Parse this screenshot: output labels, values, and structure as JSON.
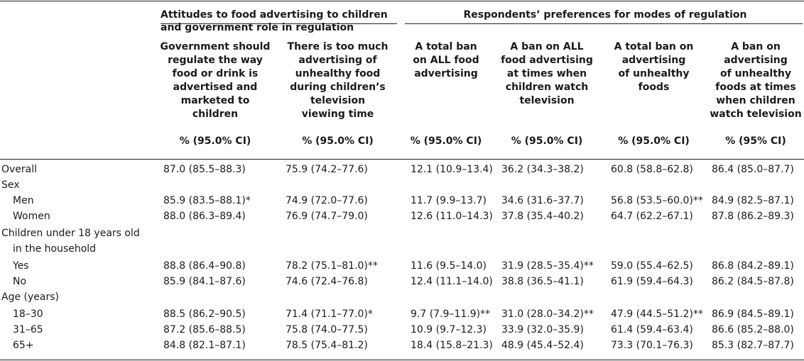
{
  "table": {
    "group_headers": [
      "Attitudes to food advertising to children and government role in regulation",
      "Respondents’ preferences for modes of regulation"
    ],
    "columns": [
      {
        "label": "Government should\nregulate the way\nfood or drink is\nadvertised and\nmarketed to\nchildren",
        "unit": "% (95.0% CI)"
      },
      {
        "label": "There is too much\nadvertising of\nunhealthy food\nduring children’s\ntelevision\nviewing time",
        "unit": "% (95.0% CI)"
      },
      {
        "label": "A total ban\non ALL food\nadvertising",
        "unit": "% (95.0% CI)"
      },
      {
        "label": "A ban on ALL\nfood advertising\nat times when\nchildren watch\ntelevision",
        "unit": "% (95.0% CI)"
      },
      {
        "label": "A total ban on\nadvertising\nof unhealthy\nfoods",
        "unit": "% (95.0% CI)"
      },
      {
        "label": "A ban on\nadvertising\nof unhealthy\nfoods at times\nwhen children\nwatch television",
        "unit": "% (95% CI)"
      }
    ],
    "rows": [
      {
        "label": "Overall",
        "values": [
          "87.0 (85.5–88.3)",
          "75.9 (74.2–77.6)",
          "12.1 (10.9–13.4)",
          "36.2 (34.3–38.2)",
          "60.8 (58.8–62.8)",
          "86.4 (85.0–87.7)"
        ]
      },
      {
        "label": "Sex",
        "values": []
      },
      {
        "label": "Men",
        "values": [
          "85.9 (83.5–88.1)*",
          "74.9 (72.0–77.6)",
          "11.7 (9.9–13.7)",
          "34.6 (31.6–37.7)",
          "56.8 (53.5–60.0)**",
          "84.9 (82.5–87.1)"
        ]
      },
      {
        "label": "Women",
        "values": [
          "88.0 (86.3–89.4)",
          "76.9 (74.7–79.0)",
          "12.6 (11.0–14.3)",
          "37.8 (35.4–40.2)",
          "64.7 (62.2–67.1)",
          "87.8 (86.2–89.3)"
        ]
      },
      {
        "label": "Children under 18 years old",
        "values": []
      },
      {
        "label": "in the household",
        "values": []
      },
      {
        "label": "Yes",
        "values": [
          "88.8 (86.4–90.8)",
          "78.2 (75.1–81.0)**",
          "11.6 (9.5–14.0)",
          "31.9 (28.5–35.4)**",
          "59.0 (55.4–62.5)",
          "86.8 (84.2–89.1)"
        ]
      },
      {
        "label": "No",
        "values": [
          "85.9 (84.1–87.6)",
          "74.6 (72.4–76.8)",
          "12.4 (11.1–14.0)",
          "38.8 (36.5–41.1)",
          "61.9 (59.4–64.3)",
          "86.2 (84.5–87.8)"
        ]
      },
      {
        "label": "Age (years)",
        "values": []
      },
      {
        "label": "18–30",
        "values": [
          "88.5 (86.2–90.5)",
          "71.4 (71.1–77.0)*",
          "9.7 (7.9–11.9)**",
          "31.0 (28.0–34.2)**",
          "47.9 (44.5–51.2)**",
          "86.9 (84.5–89.1)"
        ]
      },
      {
        "label": "31–65",
        "values": [
          "87.2 (85.6–88.5)",
          "75.8 (74.0–77.5)",
          "10.9 (9.7–12.3)",
          "33.9 (32.0–35.9)",
          "61.4 (59.4–63.4)",
          "86.6 (85.2–88.0)"
        ]
      },
      {
        "label": "65+",
        "values": [
          "84.8 (82.1–87.1)",
          "78.5 (75.4–81.2)",
          "18.4 (15.8–21.3)",
          "48.9 (45.4–52.4)",
          "73.3 (70.1–76.3)",
          "85.3 (82.7–87.7)"
        ]
      }
    ]
  }
}
